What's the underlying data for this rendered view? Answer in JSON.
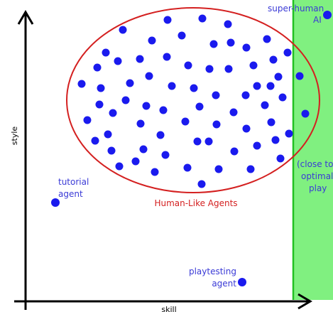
{
  "labels": {
    "x_axis": "skill",
    "y_axis": "style",
    "human_like": "Human-Like Agents",
    "tutorial_line1": "tutorial",
    "tutorial_line2": "agent",
    "playtesting_line1": "playtesting",
    "playtesting_line2": "agent",
    "superhuman_line1": "super-human",
    "superhuman_line2": "AI",
    "optimal_line1": "(close to",
    "optimal_line2": "optimal",
    "optimal_line3": "play"
  },
  "colors": {
    "dot": "#1a1aee",
    "label_blue": "#3a3ad6",
    "ellipse": "#d42020",
    "region_fill": "#80f080",
    "region_edge": "#22c022",
    "axis": "#000000"
  },
  "icons": {
    "axis_arrow": "arrowhead",
    "agent_marker": "filled-circle"
  }
}
